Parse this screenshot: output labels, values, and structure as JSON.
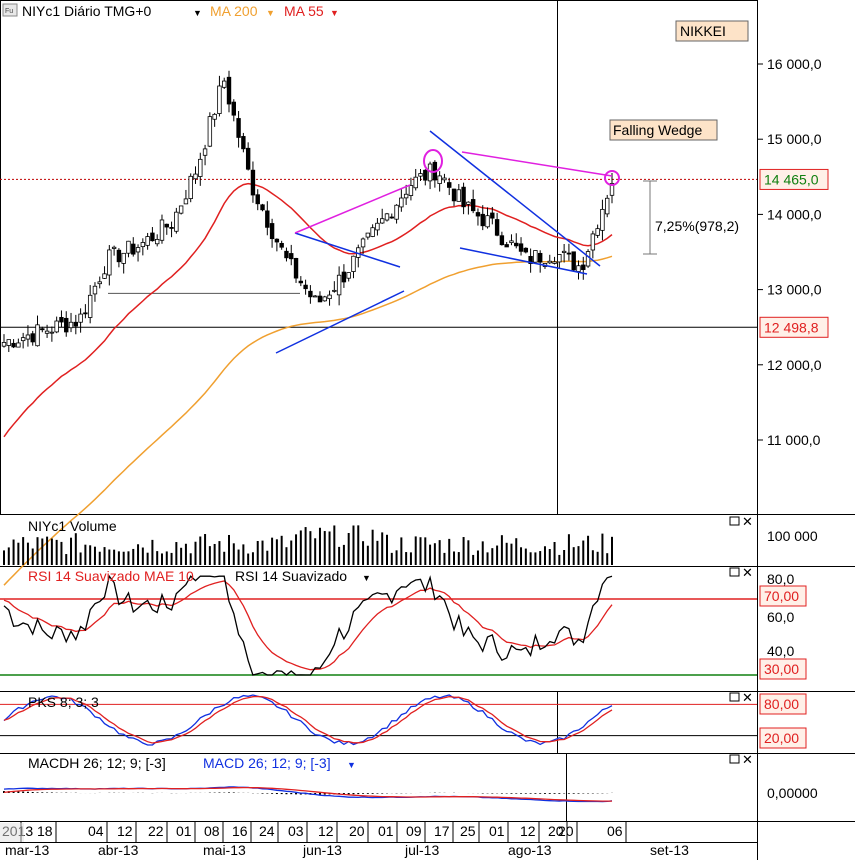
{
  "header": {
    "symbol": "NIYc1 Diário TMG+0",
    "ma200_label": "MA 200",
    "ma55_label": "MA 55",
    "nikkei_badge": "NIKKEI",
    "pattern_label": "Falling Wedge",
    "measure_label": "7,25%(978,2)"
  },
  "price_axis": {
    "ticks": [
      "16 000,0",
      "15 000,0",
      "14 000,0",
      "13 000,0",
      "12 000,0",
      "11 000,0"
    ],
    "last_price": "14 465,0",
    "crosshair_price": "12 498,8"
  },
  "panels": {
    "volume": {
      "title": "NIYc1 Volume",
      "tick": "100 000"
    },
    "rsi": {
      "title_red": "RSI 14 Suavizado MAE 10",
      "title_black": "RSI 14 Suavizado",
      "ticks": [
        "80,0",
        "60,0",
        "40,0"
      ],
      "level_high": "70,00",
      "level_low": "30,00"
    },
    "stoch": {
      "title": "PKS 8; 3; 3",
      "level_high": "80,00",
      "level_low": "20,00"
    },
    "macd": {
      "title_black": "MACDH 26; 12; 9; [-3]",
      "title_blue": "MACD 26; 12; 9; [-3]",
      "tick": "0,00000"
    }
  },
  "time_axis": {
    "days": [
      "2013",
      "18",
      "04",
      "12",
      "22",
      "01",
      "08",
      "16",
      "24",
      "03",
      "12",
      "20",
      "01",
      "09",
      "17",
      "25",
      "01",
      "12",
      "20",
      "20",
      "06"
    ],
    "months": [
      "mar-13",
      "abr-13",
      "mai-13",
      "jun-13",
      "jul-13",
      "ago-13",
      "set-13"
    ]
  },
  "colors": {
    "ma200": "#f0a030",
    "ma55": "#e02020",
    "trend": "#1030e0",
    "magenta": "#e020e0",
    "badge_bg": "#fde3c8",
    "rsi_high": "#e02020",
    "rsi_low": "#108010"
  },
  "chart_data": {
    "type": "candlestick",
    "title": "NIYc1 Diário TMG+0",
    "y_range": [
      10000,
      16800
    ],
    "x_range": [
      "2013-03-13",
      "2013-09-13"
    ],
    "key_levels": {
      "last_close": 14465,
      "crosshair": 12498.8,
      "april_support": 12950
    },
    "annotations": {
      "falling_wedge_target_pct": 7.25,
      "falling_wedge_target_pts": 978.2
    },
    "approx_closes": [
      {
        "date": "2013-03-13",
        "close": 12300
      },
      {
        "date": "2013-04-04",
        "close": 12600
      },
      {
        "date": "2013-04-12",
        "close": 13400
      },
      {
        "date": "2013-04-22",
        "close": 13600
      },
      {
        "date": "2013-05-01",
        "close": 13900
      },
      {
        "date": "2013-05-08",
        "close": 14600
      },
      {
        "date": "2013-05-16",
        "close": 15800
      },
      {
        "date": "2013-05-24",
        "close": 14400
      },
      {
        "date": "2013-06-03",
        "close": 13400
      },
      {
        "date": "2013-06-12",
        "close": 12800
      },
      {
        "date": "2013-06-20",
        "close": 13200
      },
      {
        "date": "2013-07-01",
        "close": 13900
      },
      {
        "date": "2013-07-09",
        "close": 14400
      },
      {
        "date": "2013-07-17",
        "close": 14600
      },
      {
        "date": "2013-07-25",
        "close": 14100
      },
      {
        "date": "2013-08-01",
        "close": 13900
      },
      {
        "date": "2013-08-12",
        "close": 13400
      },
      {
        "date": "2013-08-20",
        "close": 13500
      },
      {
        "date": "2013-08-28",
        "close": 13300
      },
      {
        "date": "2013-09-06",
        "close": 14465
      }
    ],
    "volume_tick": 100000,
    "rsi_levels": [
      70,
      30
    ],
    "stoch_levels": [
      80,
      20
    ],
    "macd_zero": 0
  }
}
